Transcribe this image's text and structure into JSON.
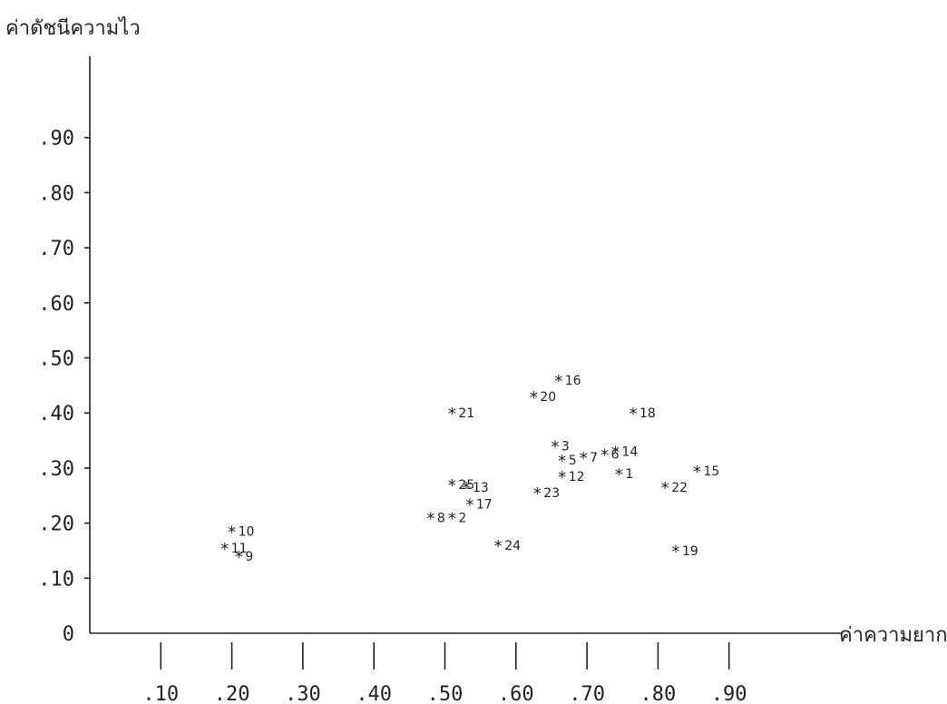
{
  "chart_data": {
    "type": "scatter",
    "ylabel": "ค่าดัชนีความไว",
    "xlabel": "ค่าความยาก",
    "xlim": [
      0.0,
      0.95
    ],
    "ylim": [
      0.0,
      0.95
    ],
    "x_ticks": [
      {
        "value": 0.1,
        "label": ".10"
      },
      {
        "value": 0.2,
        "label": ".20"
      },
      {
        "value": 0.3,
        "label": ".30"
      },
      {
        "value": 0.4,
        "label": ".40"
      },
      {
        "value": 0.5,
        "label": ".50"
      },
      {
        "value": 0.6,
        "label": ".60"
      },
      {
        "value": 0.7,
        "label": ".70"
      },
      {
        "value": 0.8,
        "label": ".80"
      },
      {
        "value": 0.9,
        "label": ".90"
      }
    ],
    "y_ticks": [
      {
        "value": 0.0,
        "label": "0"
      },
      {
        "value": 0.1,
        "label": ".10"
      },
      {
        "value": 0.2,
        "label": ".20"
      },
      {
        "value": 0.3,
        "label": ".30"
      },
      {
        "value": 0.4,
        "label": ".40"
      },
      {
        "value": 0.5,
        "label": ".50"
      },
      {
        "value": 0.6,
        "label": ".60"
      },
      {
        "value": 0.7,
        "label": ".70"
      },
      {
        "value": 0.8,
        "label": ".80"
      },
      {
        "value": 0.9,
        "label": ".90"
      }
    ],
    "marker": "*",
    "points": [
      {
        "label": "1",
        "x": 0.745,
        "y": 0.29
      },
      {
        "label": "2",
        "x": 0.51,
        "y": 0.21
      },
      {
        "label": "3",
        "x": 0.655,
        "y": 0.34
      },
      {
        "label": "5",
        "x": 0.665,
        "y": 0.315
      },
      {
        "label": "6",
        "x": 0.725,
        "y": 0.325
      },
      {
        "label": "7",
        "x": 0.695,
        "y": 0.32
      },
      {
        "label": "8",
        "x": 0.48,
        "y": 0.21
      },
      {
        "label": "9",
        "x": 0.21,
        "y": 0.14
      },
      {
        "label": "10",
        "x": 0.2,
        "y": 0.185
      },
      {
        "label": "11",
        "x": 0.19,
        "y": 0.155
      },
      {
        "label": "12",
        "x": 0.665,
        "y": 0.285
      },
      {
        "label": "13",
        "x": 0.53,
        "y": 0.265
      },
      {
        "label": "14",
        "x": 0.74,
        "y": 0.33
      },
      {
        "label": "15",
        "x": 0.855,
        "y": 0.295
      },
      {
        "label": "16",
        "x": 0.66,
        "y": 0.46
      },
      {
        "label": "17",
        "x": 0.535,
        "y": 0.235
      },
      {
        "label": "18",
        "x": 0.765,
        "y": 0.4
      },
      {
        "label": "19",
        "x": 0.825,
        "y": 0.15
      },
      {
        "label": "20",
        "x": 0.625,
        "y": 0.43
      },
      {
        "label": "21",
        "x": 0.51,
        "y": 0.4
      },
      {
        "label": "22",
        "x": 0.81,
        "y": 0.265
      },
      {
        "label": "23",
        "x": 0.63,
        "y": 0.255
      },
      {
        "label": "24",
        "x": 0.575,
        "y": 0.16
      },
      {
        "label": "25",
        "x": 0.51,
        "y": 0.27
      }
    ]
  }
}
